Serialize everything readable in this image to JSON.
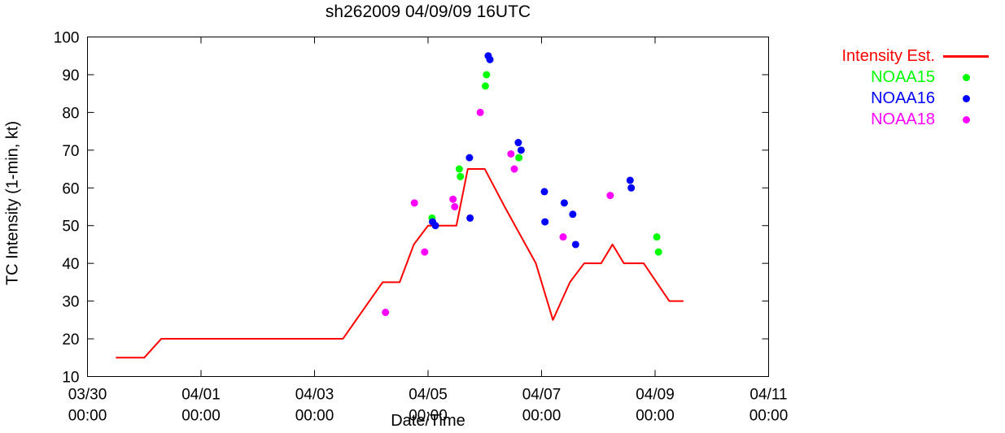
{
  "title": "sh262009 04/09/09 16UTC",
  "axes": {
    "xlabel": "Date/Time",
    "ylabel": "TC Intensity (1-min, kt)"
  },
  "legend": {
    "entries": [
      {
        "label": "Intensity Est.",
        "color": "#ff0000",
        "marker": "line"
      },
      {
        "label": "NOAA15",
        "color": "#00ff00",
        "marker": "dot"
      },
      {
        "label": "NOAA16",
        "color": "#0000ff",
        "marker": "dot"
      },
      {
        "label": "NOAA18",
        "color": "#ff00ff",
        "marker": "dot"
      }
    ]
  },
  "chart_data": {
    "type": "line",
    "title": "sh262009 04/09/09 16UTC",
    "xlabel": "Date/Time",
    "ylabel": "TC Intensity (1-min, kt)",
    "grid": false,
    "legend_position": "outside-top-right",
    "x_axis": {
      "unit": "days since 03/30 00:00",
      "range": [
        0,
        12
      ],
      "ticks": [
        {
          "pos": 0,
          "label": "03/30",
          "sublabel": "00:00"
        },
        {
          "pos": 2,
          "label": "04/01",
          "sublabel": "00:00"
        },
        {
          "pos": 4,
          "label": "04/03",
          "sublabel": "00:00"
        },
        {
          "pos": 6,
          "label": "04/05",
          "sublabel": "00:00"
        },
        {
          "pos": 8,
          "label": "04/07",
          "sublabel": "00:00"
        },
        {
          "pos": 10,
          "label": "04/09",
          "sublabel": "00:00"
        },
        {
          "pos": 12,
          "label": "04/11",
          "sublabel": "00:00"
        }
      ]
    },
    "y_axis": {
      "range": [
        10,
        100
      ],
      "ticks": [
        10,
        20,
        30,
        40,
        50,
        60,
        70,
        80,
        90,
        100
      ]
    },
    "series": [
      {
        "name": "Intensity Est.",
        "type": "line",
        "color": "#ff0000",
        "points": [
          [
            0.5,
            15
          ],
          [
            1.0,
            15
          ],
          [
            1.3,
            20
          ],
          [
            4.5,
            20
          ],
          [
            5.2,
            35
          ],
          [
            5.5,
            35
          ],
          [
            5.75,
            45
          ],
          [
            6.0,
            50
          ],
          [
            6.5,
            50
          ],
          [
            6.7,
            65
          ],
          [
            7.0,
            65
          ],
          [
            7.35,
            55
          ],
          [
            7.9,
            40
          ],
          [
            8.2,
            25
          ],
          [
            8.5,
            35
          ],
          [
            8.75,
            40
          ],
          [
            9.05,
            40
          ],
          [
            9.25,
            45
          ],
          [
            9.45,
            40
          ],
          [
            9.8,
            40
          ],
          [
            10.25,
            30
          ],
          [
            10.5,
            30
          ]
        ]
      },
      {
        "name": "NOAA15",
        "type": "scatter",
        "color": "#00ff00",
        "points": [
          [
            6.07,
            52
          ],
          [
            6.55,
            65
          ],
          [
            6.57,
            63
          ],
          [
            7.01,
            87
          ],
          [
            7.03,
            90
          ],
          [
            7.6,
            68
          ],
          [
            10.03,
            47
          ],
          [
            10.06,
            43
          ]
        ]
      },
      {
        "name": "NOAA16",
        "type": "scatter",
        "color": "#0000ff",
        "points": [
          [
            6.08,
            51
          ],
          [
            6.13,
            50
          ],
          [
            6.73,
            68
          ],
          [
            6.74,
            52
          ],
          [
            7.06,
            95
          ],
          [
            7.09,
            94
          ],
          [
            7.59,
            72
          ],
          [
            7.64,
            70
          ],
          [
            8.05,
            59
          ],
          [
            8.06,
            51
          ],
          [
            8.4,
            56
          ],
          [
            8.55,
            53
          ],
          [
            8.6,
            45
          ],
          [
            9.56,
            62
          ],
          [
            9.58,
            60
          ]
        ]
      },
      {
        "name": "NOAA18",
        "type": "scatter",
        "color": "#ff00ff",
        "points": [
          [
            5.25,
            27
          ],
          [
            5.76,
            56
          ],
          [
            5.94,
            43
          ],
          [
            6.44,
            57
          ],
          [
            6.47,
            55
          ],
          [
            6.92,
            80
          ],
          [
            7.46,
            69
          ],
          [
            7.52,
            65
          ],
          [
            8.38,
            47
          ],
          [
            9.21,
            58
          ]
        ]
      }
    ]
  }
}
